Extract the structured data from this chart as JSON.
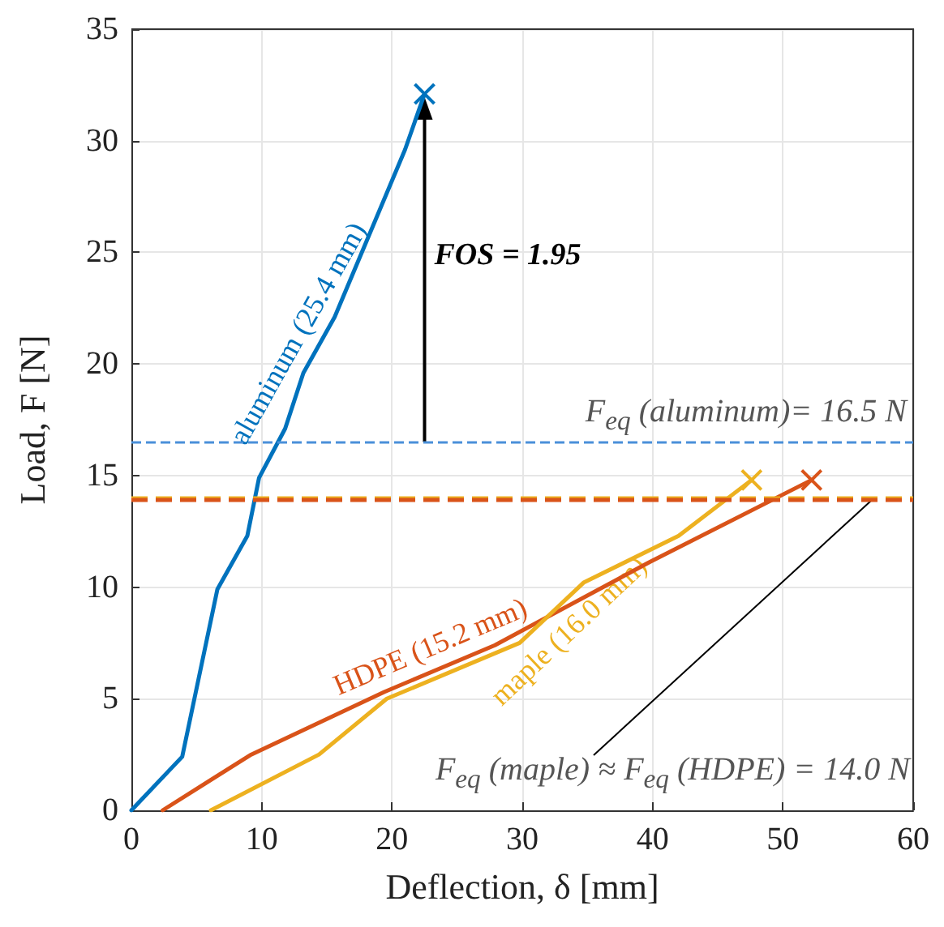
{
  "chart_data": {
    "type": "line",
    "xlabel": "Deflection, δ [mm]",
    "ylabel": "Load, F [N]",
    "xlim": [
      0,
      60
    ],
    "xticks": [
      0,
      10,
      20,
      30,
      40,
      50,
      60
    ],
    "ylim": [
      0,
      35
    ],
    "yticks": [
      0,
      5,
      10,
      15,
      20,
      25,
      30,
      35
    ],
    "grid": true,
    "line_style": "solid",
    "series": [
      {
        "name": "aluminum (25.4 mm)",
        "color": "#0072bd",
        "x": [
          0,
          3.9,
          6.6,
          8.9,
          9.8,
          11.8,
          13.2,
          15.6,
          21.0,
          22.5
        ],
        "values": [
          0,
          2.4,
          9.9,
          12.3,
          14.9,
          17.1,
          19.6,
          22.1,
          29.6,
          32.1
        ]
      },
      {
        "name": "HDPE (15.2 mm)",
        "color": "#d95319",
        "x": [
          2.4,
          9.2,
          19.4,
          27.9,
          39.7,
          52.2
        ],
        "values": [
          0,
          2.5,
          5.3,
          7.4,
          11.1,
          14.8
        ]
      },
      {
        "name": "maple (16.0 mm)",
        "color": "#edb120",
        "x": [
          6.1,
          14.4,
          19.6,
          29.8,
          34.7,
          42.0,
          47.6
        ],
        "values": [
          0,
          2.5,
          5.0,
          7.5,
          10.2,
          12.3,
          14.8
        ]
      }
    ],
    "ref_lines": [
      {
        "axis": "y",
        "value": 16.5,
        "label": "F$_{eq}$ (aluminum)= 16.5 N",
        "color": "#4a90d9",
        "line_style": "dashed"
      },
      {
        "axis": "y",
        "value": 14.0,
        "color": "#edb120",
        "line_style": "dashed"
      },
      {
        "axis": "y",
        "value": 13.9,
        "color": "#d95319",
        "line_style": "dashed"
      }
    ],
    "annotations": [
      "FOS = 1.95",
      {
        "text": "F$_{eq}$ (maple) ≈ F$_{eq}$ (HDPE) = 14.0 N",
        "x": 57,
        "y": 14
      }
    ]
  }
}
